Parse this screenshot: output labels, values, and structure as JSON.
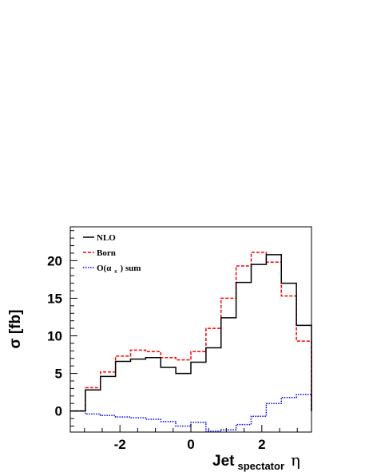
{
  "chart_data": {
    "type": "line",
    "style": "histogram-step",
    "xlabel": {
      "main": "Jet",
      "sub": "spectator",
      "symbol": "η"
    },
    "ylabel": "σ [fb]",
    "xlim": [
      -3.4,
      3.4
    ],
    "ylim": [
      -2.8,
      24.5
    ],
    "x_ticks": [
      -2,
      0,
      2
    ],
    "y_ticks": [
      0,
      5,
      10,
      15,
      20
    ],
    "grid": false,
    "legend_position": "top-left",
    "bin_edges": [
      -3.4,
      -2.975,
      -2.55,
      -2.125,
      -1.7,
      -1.275,
      -0.85,
      -0.425,
      0.0,
      0.425,
      0.85,
      1.275,
      1.7,
      2.125,
      2.55,
      2.975,
      3.4
    ],
    "series": [
      {
        "name": "NLO",
        "color": "#000000",
        "dash": "solid",
        "values": [
          0.0,
          2.8,
          4.6,
          6.6,
          6.9,
          7.1,
          5.8,
          5.0,
          6.5,
          8.4,
          12.4,
          17.1,
          19.5,
          20.8,
          17.0,
          11.4,
          0.0
        ]
      },
      {
        "name": "Born",
        "color": "#ff0000",
        "dash": "dashed",
        "values": [
          0.0,
          3.1,
          5.2,
          7.3,
          8.1,
          7.9,
          7.1,
          6.8,
          7.9,
          11.0,
          15.0,
          19.3,
          21.1,
          19.8,
          15.3,
          9.3,
          0.0
        ]
      },
      {
        "name": "O(α_s) sum",
        "color": "#0000ff",
        "dash": "dotted",
        "values": [
          0.0,
          -0.4,
          -0.6,
          -0.8,
          -0.9,
          -1.1,
          -1.4,
          -2.0,
          -1.5,
          -2.7,
          -2.5,
          -1.8,
          -0.7,
          1.0,
          1.8,
          2.2,
          0.0
        ]
      }
    ],
    "legend": [
      {
        "label": "NLO",
        "sub": ""
      },
      {
        "label": "Born",
        "sub": ""
      },
      {
        "label": "O(α",
        "sub": "s",
        "tail": ") sum"
      }
    ]
  }
}
